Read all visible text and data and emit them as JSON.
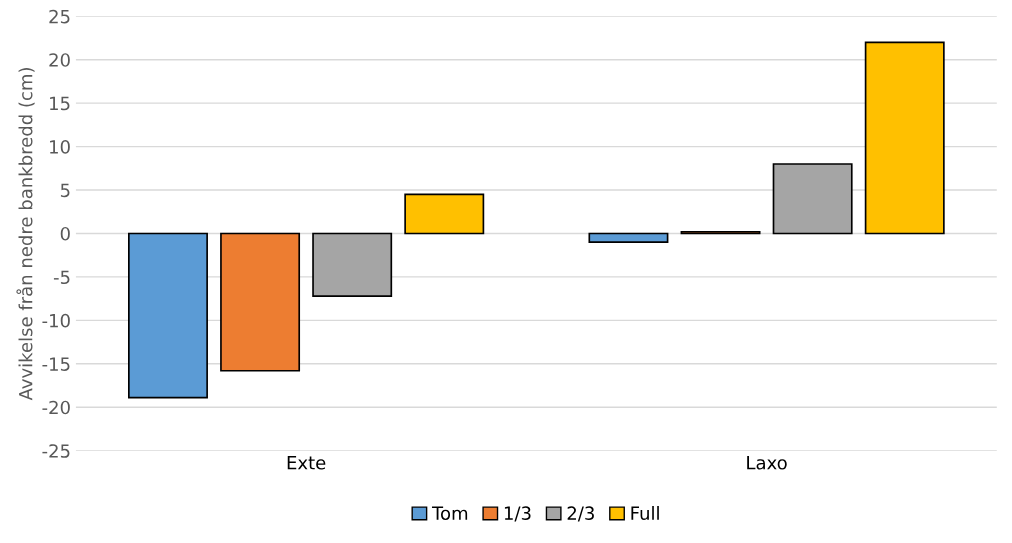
{
  "chart_data": {
    "type": "bar",
    "ylabel": "Avvikelse från nedre bankbredd (cm)",
    "categories": [
      "Exte",
      "Laxo"
    ],
    "series": [
      {
        "name": "Tom",
        "color": "#5b9bd5",
        "values": [
          -18.9,
          -1.0
        ]
      },
      {
        "name": "1/3",
        "color": "#ed7d31",
        "values": [
          -15.8,
          0.2
        ]
      },
      {
        "name": "2/3",
        "color": "#a5a5a5",
        "values": [
          -7.2,
          8.0
        ]
      },
      {
        "name": "Full",
        "color": "#ffc000",
        "values": [
          4.5,
          22.0
        ]
      }
    ],
    "ylim": [
      -25,
      25
    ],
    "yticks": [
      -25,
      -20,
      -15,
      -10,
      -5,
      0,
      5,
      10,
      15,
      20,
      25
    ],
    "grid": "y",
    "legend": "bottom"
  }
}
